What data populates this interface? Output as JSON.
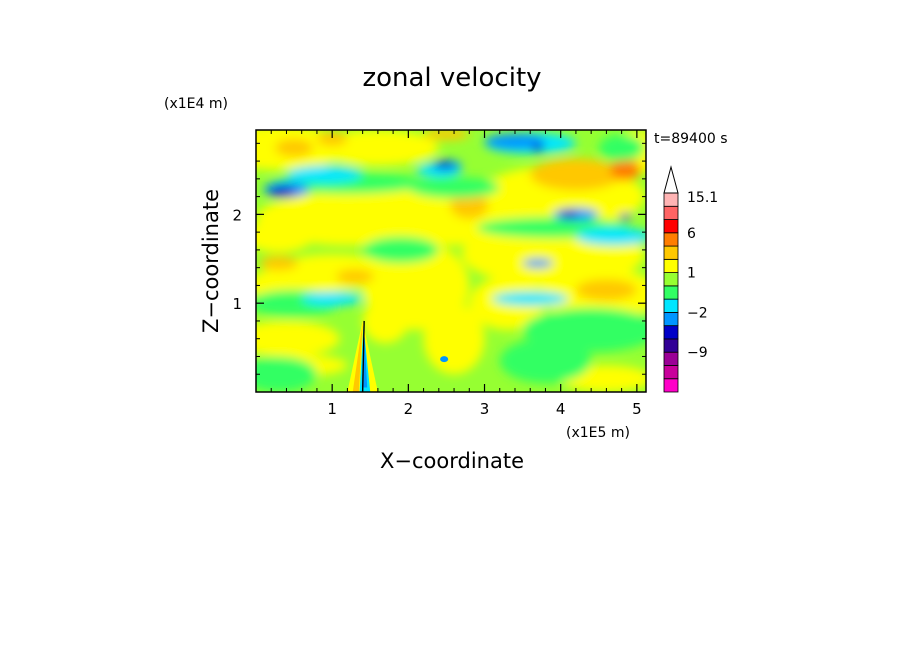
{
  "chart_data": {
    "type": "heatmap",
    "title": "zonal velocity",
    "xlabel": "X−coordinate",
    "ylabel": "Z−coordinate",
    "x_unit": "(x1E5 m)",
    "y_unit": "(x1E4 m)",
    "time_label": "t=89400 s",
    "xlim": [
      0,
      5.12
    ],
    "ylim": [
      0,
      2.95
    ],
    "x_ticks": [
      "1",
      "2",
      "3",
      "4",
      "5"
    ],
    "y_ticks": [
      "1",
      "2"
    ],
    "colorbar": {
      "labels": [
        "15.1",
        "6",
        "1",
        "−2",
        "−9"
      ],
      "levels": [
        -15,
        -12,
        -9,
        -6,
        -3,
        -2,
        -1,
        0,
        1,
        2,
        3,
        6,
        9,
        12,
        15.1
      ],
      "colors": [
        "#ff00c8",
        "#c8009b",
        "#9b0096",
        "#320096",
        "#0000c8",
        "#0096ff",
        "#00e6ff",
        "#32ff64",
        "#96ff32",
        "#ffff00",
        "#ffc800",
        "#ff7d00",
        "#ff0000",
        "#ff6464",
        "#ffb4b4"
      ]
    }
  }
}
